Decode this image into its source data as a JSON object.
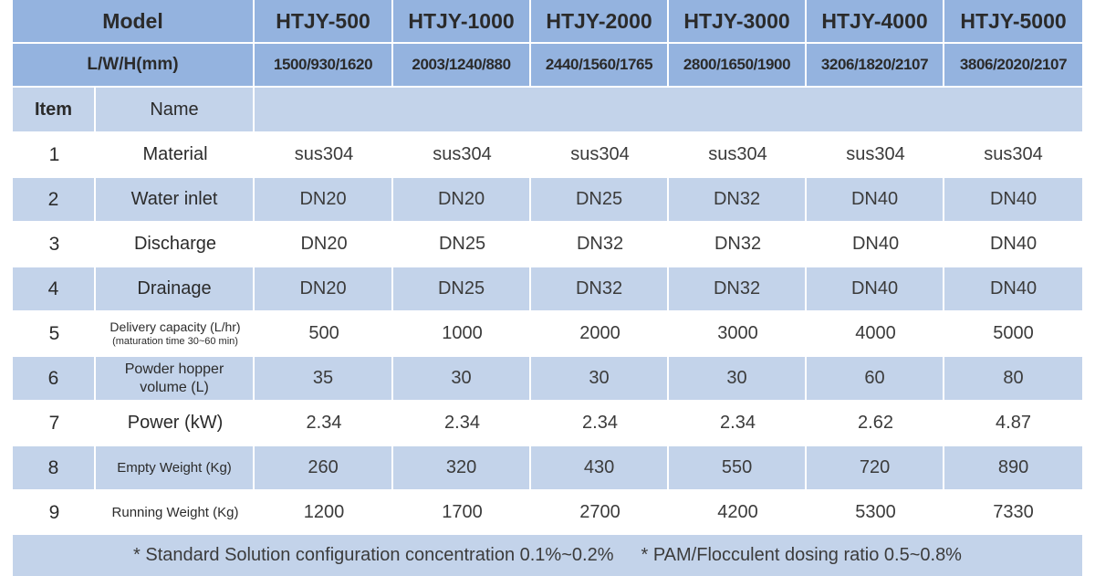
{
  "header": {
    "model_label": "Model",
    "dim_label": "L/W/H(mm)",
    "models": [
      "HTJY-500",
      "HTJY-1000",
      "HTJY-2000",
      "HTJY-3000",
      "HTJY-4000",
      "HTJY-5000"
    ],
    "dims": [
      "1500/930/1620",
      "2003/1240/880",
      "2440/1560/1765",
      "2800/1650/1900",
      "3206/1820/2107",
      "3806/2020/2107"
    ],
    "item_label": "Item",
    "name_label": "Name"
  },
  "rows": [
    {
      "idx": "1",
      "name": "Material",
      "values": [
        "sus304",
        "sus304",
        "sus304",
        "sus304",
        "sus304",
        "sus304"
      ]
    },
    {
      "idx": "2",
      "name": "Water inlet",
      "values": [
        "DN20",
        "DN20",
        "DN25",
        "DN32",
        "DN40",
        "DN40"
      ]
    },
    {
      "idx": "3",
      "name": "Discharge",
      "values": [
        "DN20",
        "DN25",
        "DN32",
        "DN32",
        "DN40",
        "DN40"
      ]
    },
    {
      "idx": "4",
      "name": "Drainage",
      "values": [
        "DN20",
        "DN25",
        "DN32",
        "DN32",
        "DN40",
        "DN40"
      ]
    },
    {
      "idx": "5",
      "name": "Delivery capacity (L/hr)",
      "sub": "(maturation time 30~60 min)",
      "values": [
        "500",
        "1000",
        "2000",
        "3000",
        "4000",
        "5000"
      ]
    },
    {
      "idx": "6",
      "name": "Powder hopper",
      "sub": "volume (L)",
      "values": [
        "35",
        "30",
        "30",
        "30",
        "60",
        "80"
      ]
    },
    {
      "idx": "7",
      "name": "Power (kW)",
      "values": [
        "2.34",
        "2.34",
        "2.34",
        "2.34",
        "2.62",
        "4.87"
      ]
    },
    {
      "idx": "8",
      "name": "Empty Weight (Kg)",
      "values": [
        "260",
        "320",
        "430",
        "550",
        "720",
        "890"
      ]
    },
    {
      "idx": "9",
      "name": "Running Weight (Kg)",
      "values": [
        "1200",
        "1700",
        "2700",
        "4200",
        "5300",
        "7330"
      ]
    }
  ],
  "footer": {
    "note1": "* Standard Solution configuration concentration 0.1%~0.2%",
    "note2": "* PAM/Flocculent dosing ratio 0.5~0.8%"
  }
}
